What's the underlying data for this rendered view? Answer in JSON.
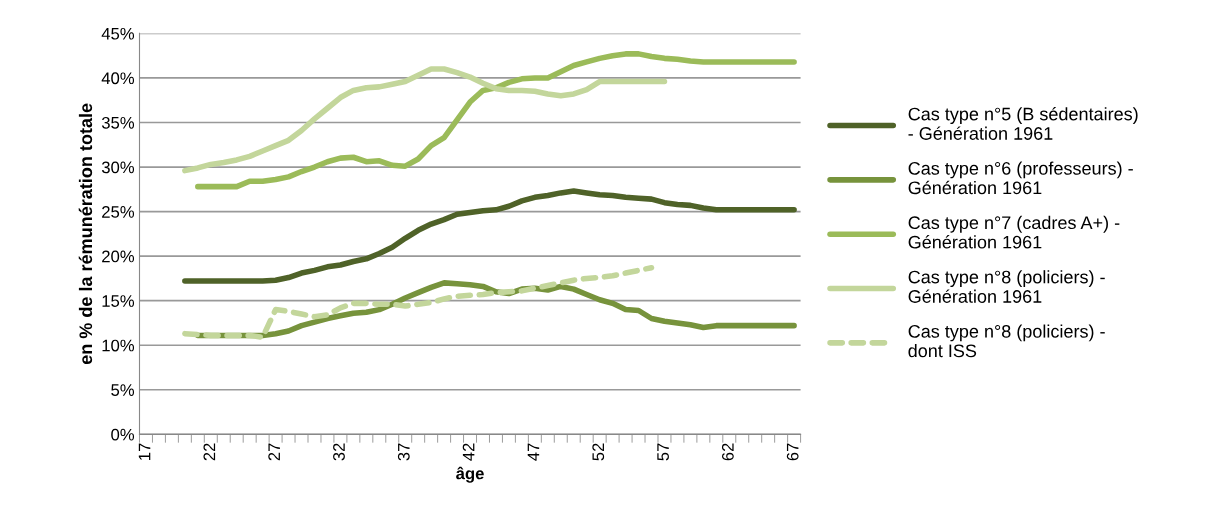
{
  "chart_data": {
    "type": "line",
    "xlabel": "âge",
    "ylabel": "en % de la rémunération totale",
    "categories": [
      "17",
      null,
      null,
      null,
      null,
      "22",
      null,
      null,
      null,
      null,
      "27",
      null,
      null,
      null,
      null,
      "32",
      null,
      null,
      null,
      null,
      "37",
      null,
      null,
      null,
      null,
      "42",
      null,
      null,
      null,
      null,
      "47",
      null,
      null,
      null,
      null,
      "52",
      null,
      null,
      null,
      null,
      "57",
      null,
      null,
      null,
      null,
      "62",
      null,
      null,
      null,
      null,
      "67"
    ],
    "ylim": [
      0,
      45
    ],
    "yticks": [
      {
        "value": 0,
        "label": "0%"
      },
      {
        "value": 5,
        "label": "5%"
      },
      {
        "value": 10,
        "label": "10%"
      },
      {
        "value": 15,
        "label": "15%"
      },
      {
        "value": 20,
        "label": "20%"
      },
      {
        "value": 25,
        "label": "25%"
      },
      {
        "value": 30,
        "label": "30%"
      },
      {
        "value": 35,
        "label": "35%"
      },
      {
        "value": 40,
        "label": "40%"
      },
      {
        "value": 45,
        "label": "45%"
      }
    ],
    "grid": "y",
    "legend": "right",
    "series": [
      {
        "name": "Cas type n°5 (B sédentaires)\n- Génération 1961",
        "color": "#4f6228",
        "line_style": "solid",
        "values": [
          null,
          null,
          null,
          17.2,
          17.2,
          17.2,
          17.2,
          17.2,
          17.2,
          17.2,
          17.3,
          17.6,
          18.1,
          18.4,
          18.8,
          19.0,
          19.4,
          19.7,
          20.3,
          21.0,
          22.0,
          22.9,
          23.6,
          24.1,
          24.7,
          24.9,
          25.1,
          25.2,
          25.6,
          26.2,
          26.6,
          26.8,
          27.1,
          27.3,
          27.1,
          26.9,
          26.8,
          26.6,
          26.5,
          26.4,
          26.0,
          25.8,
          25.7,
          25.4,
          25.2,
          25.2,
          25.2,
          25.2,
          25.2,
          25.2,
          25.2
        ]
      },
      {
        "name": "Cas type n°6 (professeurs) -\nGénération 1961",
        "color": "#77933c",
        "line_style": "solid",
        "values": [
          null,
          null,
          null,
          null,
          11.1,
          11.1,
          11.1,
          11.1,
          11.1,
          11.1,
          11.3,
          11.6,
          12.2,
          12.6,
          13.0,
          13.3,
          13.6,
          13.7,
          14.0,
          14.6,
          15.3,
          15.9,
          16.5,
          17.0,
          16.9,
          16.8,
          16.6,
          16.0,
          15.8,
          16.3,
          16.4,
          16.2,
          16.6,
          16.3,
          15.7,
          15.1,
          14.7,
          14.0,
          13.9,
          13.0,
          12.7,
          12.5,
          12.3,
          12.0,
          12.2,
          12.2,
          12.2,
          12.2,
          12.2,
          12.2,
          12.2
        ]
      },
      {
        "name": "Cas type n°7 (cadres A+) -\nGénération 1961",
        "color": "#9bbb59",
        "line_style": "solid",
        "values": [
          null,
          null,
          null,
          null,
          27.8,
          27.8,
          27.8,
          27.8,
          28.4,
          28.4,
          28.6,
          28.9,
          29.5,
          30.0,
          30.6,
          31.0,
          31.1,
          30.6,
          30.7,
          30.2,
          30.1,
          30.9,
          32.4,
          33.3,
          35.3,
          37.3,
          38.6,
          38.9,
          39.5,
          39.9,
          40.0,
          40.0,
          40.7,
          41.4,
          41.8,
          42.2,
          42.5,
          42.7,
          42.7,
          42.4,
          42.2,
          42.1,
          41.9,
          41.8,
          41.8,
          41.8,
          41.8,
          41.8,
          41.8,
          41.8,
          41.8
        ]
      },
      {
        "name": "Cas type n°8 (policiers) -\nGénération 1961",
        "color": "#c3d69b",
        "line_style": "solid",
        "values": [
          null,
          null,
          null,
          29.6,
          29.9,
          30.3,
          30.5,
          30.8,
          31.2,
          31.8,
          32.4,
          33.0,
          34.1,
          35.4,
          36.6,
          37.8,
          38.6,
          38.9,
          39.0,
          39.3,
          39.6,
          40.3,
          41.0,
          41.0,
          40.6,
          40.1,
          39.4,
          38.8,
          38.6,
          38.6,
          38.5,
          38.2,
          38.0,
          38.2,
          38.7,
          39.6,
          39.6,
          39.6,
          39.6,
          39.6,
          39.6,
          null,
          null,
          null,
          null,
          null,
          null,
          null,
          null,
          null,
          null
        ]
      },
      {
        "name": "Cas type n°8 (policiers) -\ndont ISS",
        "color": "#c3d69b",
        "line_style": "dashed",
        "values": [
          null,
          null,
          null,
          11.3,
          11.2,
          11.1,
          11.1,
          11.1,
          11.1,
          10.9,
          14.0,
          13.8,
          13.5,
          13.2,
          13.4,
          14.2,
          14.7,
          14.7,
          14.6,
          14.6,
          14.4,
          14.6,
          14.8,
          15.2,
          15.5,
          15.6,
          15.7,
          15.9,
          16.0,
          16.1,
          16.4,
          16.7,
          17.0,
          17.3,
          17.5,
          17.6,
          17.8,
          18.1,
          18.4,
          18.7,
          null,
          null,
          null,
          null,
          null,
          null,
          null,
          null,
          null,
          null,
          null
        ]
      }
    ]
  }
}
